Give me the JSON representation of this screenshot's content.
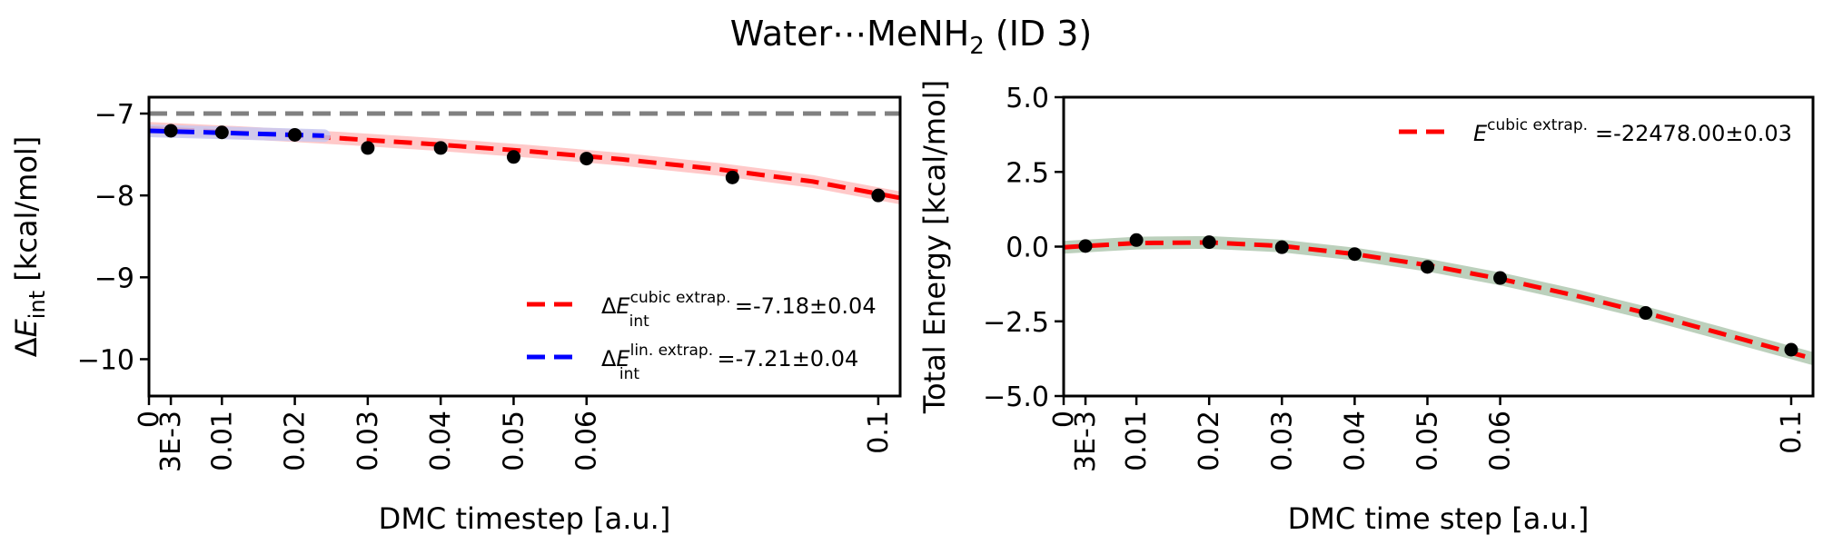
{
  "figure": {
    "title": "Water⋯MeNH",
    "title_sub": "2",
    "title_tail": " (ID 3)"
  },
  "chart_data": [
    {
      "type": "scatter",
      "panel": "left",
      "xlabel": "DMC timestep [a.u.]",
      "ylabel": {
        "prefix": "Δ",
        "main": "E",
        "sub": "int",
        "suffix": " [kcal/mol]"
      },
      "xlim": [
        0,
        0.103
      ],
      "ylim": [
        -10.45,
        -6.8
      ],
      "xticks": [
        {
          "value": 0,
          "label": "0"
        },
        {
          "value": 0.003,
          "label": "3E-3"
        },
        {
          "value": 0.01,
          "label": "0.01"
        },
        {
          "value": 0.02,
          "label": "0.02"
        },
        {
          "value": 0.03,
          "label": "0.03"
        },
        {
          "value": 0.04,
          "label": "0.04"
        },
        {
          "value": 0.05,
          "label": "0.05"
        },
        {
          "value": 0.06,
          "label": "0.06"
        },
        {
          "value": 0.1,
          "label": "0.1"
        }
      ],
      "yticks": [
        {
          "value": -7,
          "label": "−7"
        },
        {
          "value": -8,
          "label": "−8"
        },
        {
          "value": -9,
          "label": "−9"
        },
        {
          "value": -10,
          "label": "−10"
        }
      ],
      "grid": false,
      "reference_line": {
        "y": -7,
        "color": "#808080",
        "style": "dashed"
      },
      "points": {
        "x": [
          0.003,
          0.01,
          0.02,
          0.03,
          0.04,
          0.05,
          0.06,
          0.08,
          0.1
        ],
        "y": [
          -7.21,
          -7.23,
          -7.26,
          -7.42,
          -7.42,
          -7.53,
          -7.55,
          -7.78,
          -8.0
        ],
        "color": "#000000"
      },
      "series": [
        {
          "kind": "cubic-fit",
          "x": [
            0,
            0.013,
            0.026,
            0.039,
            0.052,
            0.065,
            0.078,
            0.091,
            0.103
          ],
          "y": [
            -7.18,
            -7.235,
            -7.3,
            -7.375,
            -7.46,
            -7.56,
            -7.68,
            -7.83,
            -8.03
          ],
          "color": "#ff0000",
          "band_color": "#ffc0c0"
        },
        {
          "kind": "linear-fit",
          "x": [
            0,
            0.024
          ],
          "y": [
            -7.21,
            -7.27
          ],
          "color": "#0000ff",
          "band_color": "#c8c8f0"
        }
      ],
      "legend": {
        "placement": "lower-right",
        "entries": [
          {
            "prefix": "Δ",
            "main": "E",
            "sup": "cubic extrap.",
            "sub": "int",
            "value": "=-7.18±0.04",
            "color": "#ff0000"
          },
          {
            "prefix": "Δ",
            "main": "E",
            "sup": "lin. extrap.",
            "sub": "int",
            "value": "=-7.21±0.04",
            "color": "#0000ff"
          }
        ]
      }
    },
    {
      "type": "scatter",
      "panel": "right",
      "xlabel": "DMC time step [a.u.]",
      "ylabel": {
        "prefix": "",
        "main": "Total Energy [kcal/mol]",
        "sub": "",
        "suffix": ""
      },
      "xlim": [
        0,
        0.103
      ],
      "ylim": [
        -5.0,
        5.0
      ],
      "xticks": [
        {
          "value": 0,
          "label": "0"
        },
        {
          "value": 0.003,
          "label": "3E-3"
        },
        {
          "value": 0.01,
          "label": "0.01"
        },
        {
          "value": 0.02,
          "label": "0.02"
        },
        {
          "value": 0.03,
          "label": "0.03"
        },
        {
          "value": 0.04,
          "label": "0.04"
        },
        {
          "value": 0.05,
          "label": "0.05"
        },
        {
          "value": 0.06,
          "label": "0.06"
        },
        {
          "value": 0.1,
          "label": "0.1"
        }
      ],
      "yticks": [
        {
          "value": 5.0,
          "label": "5.0"
        },
        {
          "value": 2.5,
          "label": "2.5"
        },
        {
          "value": 0.0,
          "label": "0.0"
        },
        {
          "value": -2.5,
          "label": "−2.5"
        },
        {
          "value": -5.0,
          "label": "−5.0"
        }
      ],
      "grid": false,
      "points": {
        "x": [
          0.003,
          0.01,
          0.02,
          0.03,
          0.04,
          0.05,
          0.06,
          0.08,
          0.1
        ],
        "y": [
          0.02,
          0.22,
          0.15,
          -0.02,
          -0.25,
          -0.68,
          -1.05,
          -2.22,
          -3.45
        ],
        "color": "#000000"
      },
      "series": [
        {
          "kind": "cubic-fit",
          "x": [
            0,
            0.01,
            0.02,
            0.03,
            0.04,
            0.05,
            0.06,
            0.07,
            0.08,
            0.09,
            0.1,
            0.103
          ],
          "y": [
            -0.02,
            0.12,
            0.14,
            0.02,
            -0.25,
            -0.62,
            -1.08,
            -1.62,
            -2.22,
            -2.88,
            -3.55,
            -3.75
          ],
          "color": "#ff0000",
          "band_color": "#b0c8b0"
        }
      ],
      "legend": {
        "placement": "top-right",
        "entries": [
          {
            "prefix": "",
            "main": "E",
            "sup": "cubic extrap.",
            "sub": "",
            "value": "=-22478.00±0.03",
            "color": "#ff0000"
          }
        ]
      }
    }
  ]
}
